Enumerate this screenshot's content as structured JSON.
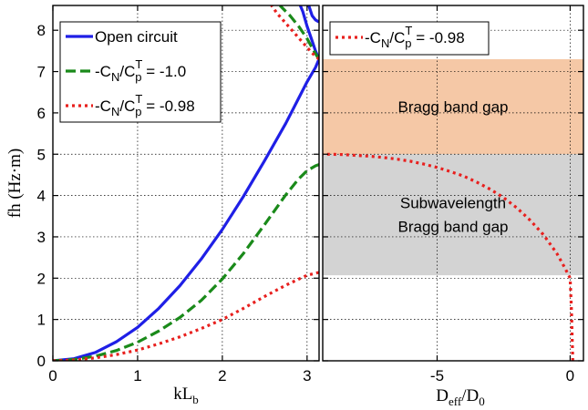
{
  "colors": {
    "open_circuit": "#1f1fe6",
    "cn_1_0": "#1a8a1a",
    "cn_0_98": "#e8201e",
    "bragg_band": "#f5c8a6",
    "subwavelength_band": "#d3d3d3"
  },
  "chart_data": [
    {
      "type": "line",
      "xlabel": {
        "base": "kL",
        "sub": "b"
      },
      "ylabel": "fh (Hz·m)",
      "xlim": [
        0,
        3.1416
      ],
      "ylim": [
        0,
        8.6
      ],
      "xticks": [
        0,
        1,
        2,
        3
      ],
      "yticks": [
        0,
        1,
        2,
        3,
        4,
        5,
        6,
        7,
        8
      ],
      "grid": true,
      "legend_placement": "top-left",
      "legend": [
        {
          "text": "Open circuit",
          "series": "open_circuit"
        },
        {
          "pre": "-C",
          "sub1": "N",
          "mid": "/C",
          "sup": "T",
          "sub2": "p",
          "post": " = -1.0",
          "series": "cn_1_0"
        },
        {
          "pre": "-C",
          "sub1": "N",
          "mid": "/C",
          "sup": "T",
          "sub2": "p",
          "post": " = -0.98",
          "series": "cn_0_98"
        }
      ],
      "series": [
        {
          "key": "open_circuit",
          "style": "solid",
          "branches": [
            {
              "x": [
                0,
                0.25,
                0.5,
                0.75,
                1.0,
                1.25,
                1.5,
                1.75,
                2.0,
                2.25,
                2.5,
                2.75,
                3.0,
                3.1,
                3.14
              ],
              "y": [
                0,
                0.05,
                0.2,
                0.46,
                0.81,
                1.27,
                1.82,
                2.46,
                3.18,
                3.98,
                4.85,
                5.75,
                6.75,
                7.1,
                7.3
              ]
            },
            {
              "x": [
                3.14,
                3.1,
                3.05,
                3.0,
                2.95,
                2.92
              ],
              "y": [
                7.3,
                7.5,
                7.8,
                8.1,
                8.45,
                8.6
              ]
            },
            {
              "x": [
                3.02,
                3.06,
                3.1,
                3.14
              ],
              "y": [
                8.6,
                8.35,
                8.25,
                8.2
              ]
            }
          ]
        },
        {
          "key": "cn_1_0",
          "style": "dashed",
          "branches": [
            {
              "x": [
                0,
                0.25,
                0.5,
                0.75,
                1.0,
                1.25,
                1.5,
                1.75,
                2.0,
                2.25,
                2.5,
                2.75,
                2.9,
                3.0,
                3.1,
                3.14
              ],
              "y": [
                0,
                0.03,
                0.11,
                0.25,
                0.45,
                0.72,
                1.05,
                1.46,
                1.98,
                2.6,
                3.3,
                4.02,
                4.4,
                4.6,
                4.72,
                4.75
              ]
            },
            {
              "x": [
                3.14,
                3.08,
                3.0,
                2.9,
                2.8,
                2.68
              ],
              "y": [
                7.3,
                7.5,
                7.8,
                8.1,
                8.35,
                8.6
              ]
            }
          ]
        },
        {
          "key": "cn_0_98",
          "style": "dotted",
          "branches": [
            {
              "x": [
                0,
                0.25,
                0.5,
                0.75,
                1.0,
                1.25,
                1.5,
                1.75,
                2.0,
                2.25,
                2.5,
                2.75,
                3.0,
                3.1,
                3.14
              ],
              "y": [
                0,
                0.02,
                0.07,
                0.15,
                0.26,
                0.41,
                0.58,
                0.78,
                1.0,
                1.27,
                1.56,
                1.83,
                2.07,
                2.12,
                2.14
              ]
            },
            {
              "x": [
                3.14,
                3.06,
                2.95,
                2.8,
                2.65,
                2.58
              ],
              "y": [
                7.3,
                7.45,
                7.7,
                8.05,
                8.4,
                8.6
              ]
            }
          ]
        }
      ]
    },
    {
      "type": "area",
      "xlabel": {
        "base": "D",
        "sub": "eff",
        "mid": "/D",
        "sub2": "0"
      },
      "xlim": [
        -9.3,
        0.5
      ],
      "ylim": [
        0,
        8.6
      ],
      "xticks": [
        -5,
        0
      ],
      "yticks": [
        0,
        1,
        2,
        3,
        4,
        5,
        6,
        7,
        8
      ],
      "grid": true,
      "legend_placement": "top-left",
      "legend": [
        {
          "pre": "-C",
          "sub1": "N",
          "mid": "/C",
          "sup": "T",
          "sub2": "p",
          "post": " = -0.98",
          "series": "cn_0_98"
        }
      ],
      "bands": [
        {
          "label_lines": [
            "Bragg band gap"
          ],
          "y_range": [
            5.0,
            7.3
          ],
          "color_key": "bragg_band"
        },
        {
          "label_lines": [
            "Subwavelength",
            "Bragg band gap"
          ],
          "y_range": [
            2.07,
            5.0
          ],
          "color_key": "subwavelength_band"
        }
      ],
      "series": [
        {
          "key": "cn_0_98",
          "style": "dotted",
          "x": [
            0.1,
            0.08,
            0.05,
            0.0,
            -0.2,
            -0.5,
            -1.0,
            -1.5,
            -2.0,
            -2.5,
            -3.0,
            -3.5,
            -4.0,
            -4.5,
            -5.0,
            -5.5,
            -6.0,
            -6.5,
            -7.0,
            -7.5,
            -8.0,
            -8.5,
            -9.0,
            -9.3
          ],
          "y": [
            0,
            0.5,
            1.2,
            2.0,
            2.25,
            2.6,
            3.05,
            3.4,
            3.7,
            3.95,
            4.15,
            4.32,
            4.47,
            4.58,
            4.68,
            4.76,
            4.83,
            4.88,
            4.92,
            4.95,
            4.97,
            4.99,
            5.0,
            5.0
          ]
        }
      ]
    }
  ]
}
